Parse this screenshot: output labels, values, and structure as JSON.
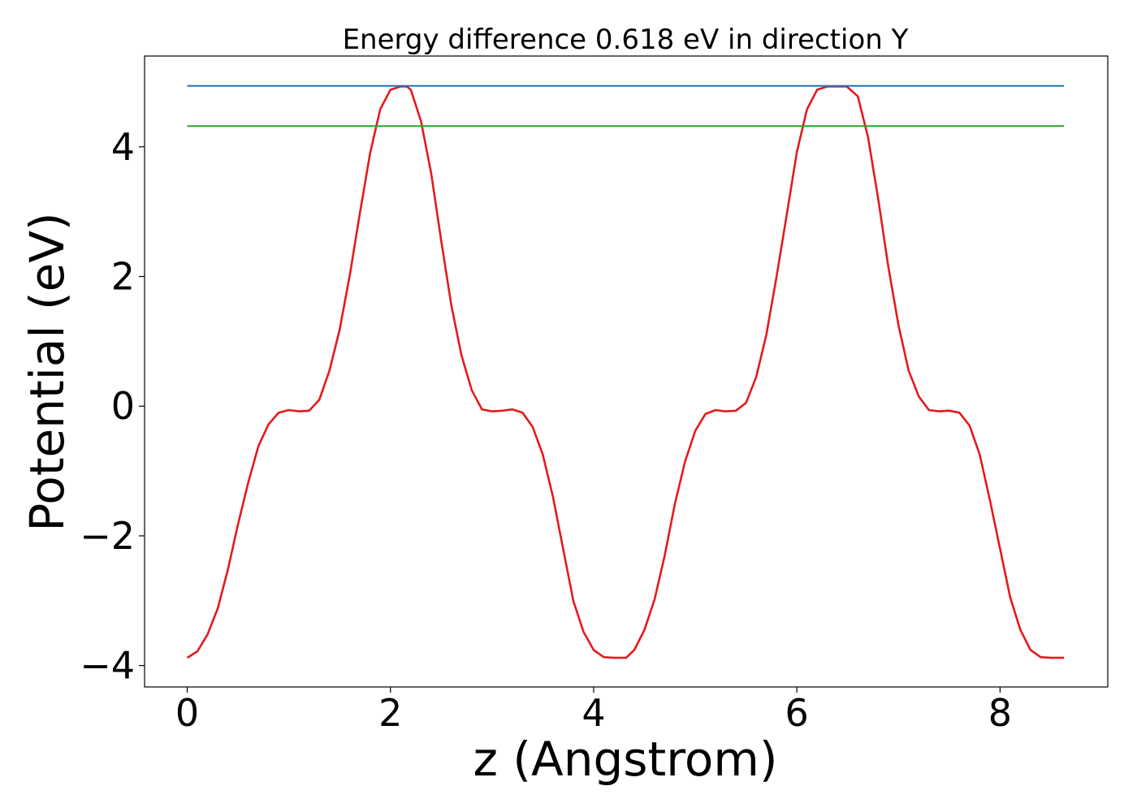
{
  "chart_data": {
    "type": "line",
    "title": "Energy difference 0.618 eV in direction Y",
    "xlabel": "z (Angstrom)",
    "ylabel": "Potential (eV)",
    "xlim": [
      -0.42,
      9.06
    ],
    "ylim": [
      -4.33,
      5.4
    ],
    "xticks": [
      0,
      2,
      4,
      6,
      8
    ],
    "xtick_labels": [
      "0",
      "2",
      "4",
      "6",
      "8"
    ],
    "yticks": [
      -4,
      -2,
      0,
      2,
      4
    ],
    "ytick_labels": [
      "−4",
      "−2",
      "0",
      "2",
      "4"
    ],
    "grid": false,
    "legend": "none",
    "series": [
      {
        "color": "#e41a1c",
        "x": [
          0.0,
          0.1,
          0.2,
          0.3,
          0.4,
          0.5,
          0.6,
          0.7,
          0.8,
          0.9,
          1.0,
          1.1,
          1.2,
          1.3,
          1.4,
          1.5,
          1.6,
          1.7,
          1.8,
          1.9,
          2.0,
          2.1,
          2.16,
          2.2,
          2.3,
          2.4,
          2.5,
          2.6,
          2.7,
          2.8,
          2.9,
          3.0,
          3.1,
          3.2,
          3.3,
          3.4,
          3.5,
          3.6,
          3.7,
          3.8,
          3.9,
          4.0,
          4.1,
          4.2,
          4.32,
          4.4,
          4.5,
          4.6,
          4.7,
          4.8,
          4.9,
          5.0,
          5.1,
          5.2,
          5.3,
          5.4,
          5.5,
          5.6,
          5.7,
          5.8,
          5.9,
          6.0,
          6.1,
          6.2,
          6.3,
          6.4,
          6.49,
          6.6,
          6.7,
          6.8,
          6.9,
          7.0,
          7.1,
          7.2,
          7.3,
          7.4,
          7.5,
          7.6,
          7.7,
          7.8,
          7.9,
          8.0,
          8.1,
          8.2,
          8.3,
          8.4,
          8.5,
          8.63
        ],
        "y": [
          -3.88,
          -3.78,
          -3.52,
          -3.12,
          -2.52,
          -1.82,
          -1.18,
          -0.62,
          -0.28,
          -0.1,
          -0.06,
          -0.08,
          -0.07,
          0.1,
          0.55,
          1.18,
          2.02,
          2.98,
          3.9,
          4.58,
          4.88,
          4.93,
          4.93,
          4.88,
          4.4,
          3.6,
          2.55,
          1.55,
          0.78,
          0.25,
          -0.05,
          -0.08,
          -0.07,
          -0.05,
          -0.1,
          -0.32,
          -0.75,
          -1.4,
          -2.2,
          -3.0,
          -3.48,
          -3.76,
          -3.87,
          -3.88,
          -3.88,
          -3.76,
          -3.45,
          -2.98,
          -2.3,
          -1.5,
          -0.85,
          -0.38,
          -0.12,
          -0.06,
          -0.08,
          -0.07,
          0.05,
          0.45,
          1.1,
          2.0,
          2.95,
          3.92,
          4.58,
          4.88,
          4.93,
          4.93,
          4.93,
          4.78,
          4.15,
          3.2,
          2.15,
          1.25,
          0.55,
          0.15,
          -0.06,
          -0.08,
          -0.07,
          -0.1,
          -0.3,
          -0.75,
          -1.45,
          -2.2,
          -2.95,
          -3.45,
          -3.76,
          -3.87,
          -3.88,
          -3.88
        ]
      },
      {
        "color": "#1f77b4",
        "x": [
          0.0,
          8.63
        ],
        "y": [
          4.94,
          4.94
        ]
      },
      {
        "color": "#2ca02c",
        "x": [
          0.0,
          8.63
        ],
        "y": [
          4.32,
          4.32
        ]
      }
    ]
  }
}
